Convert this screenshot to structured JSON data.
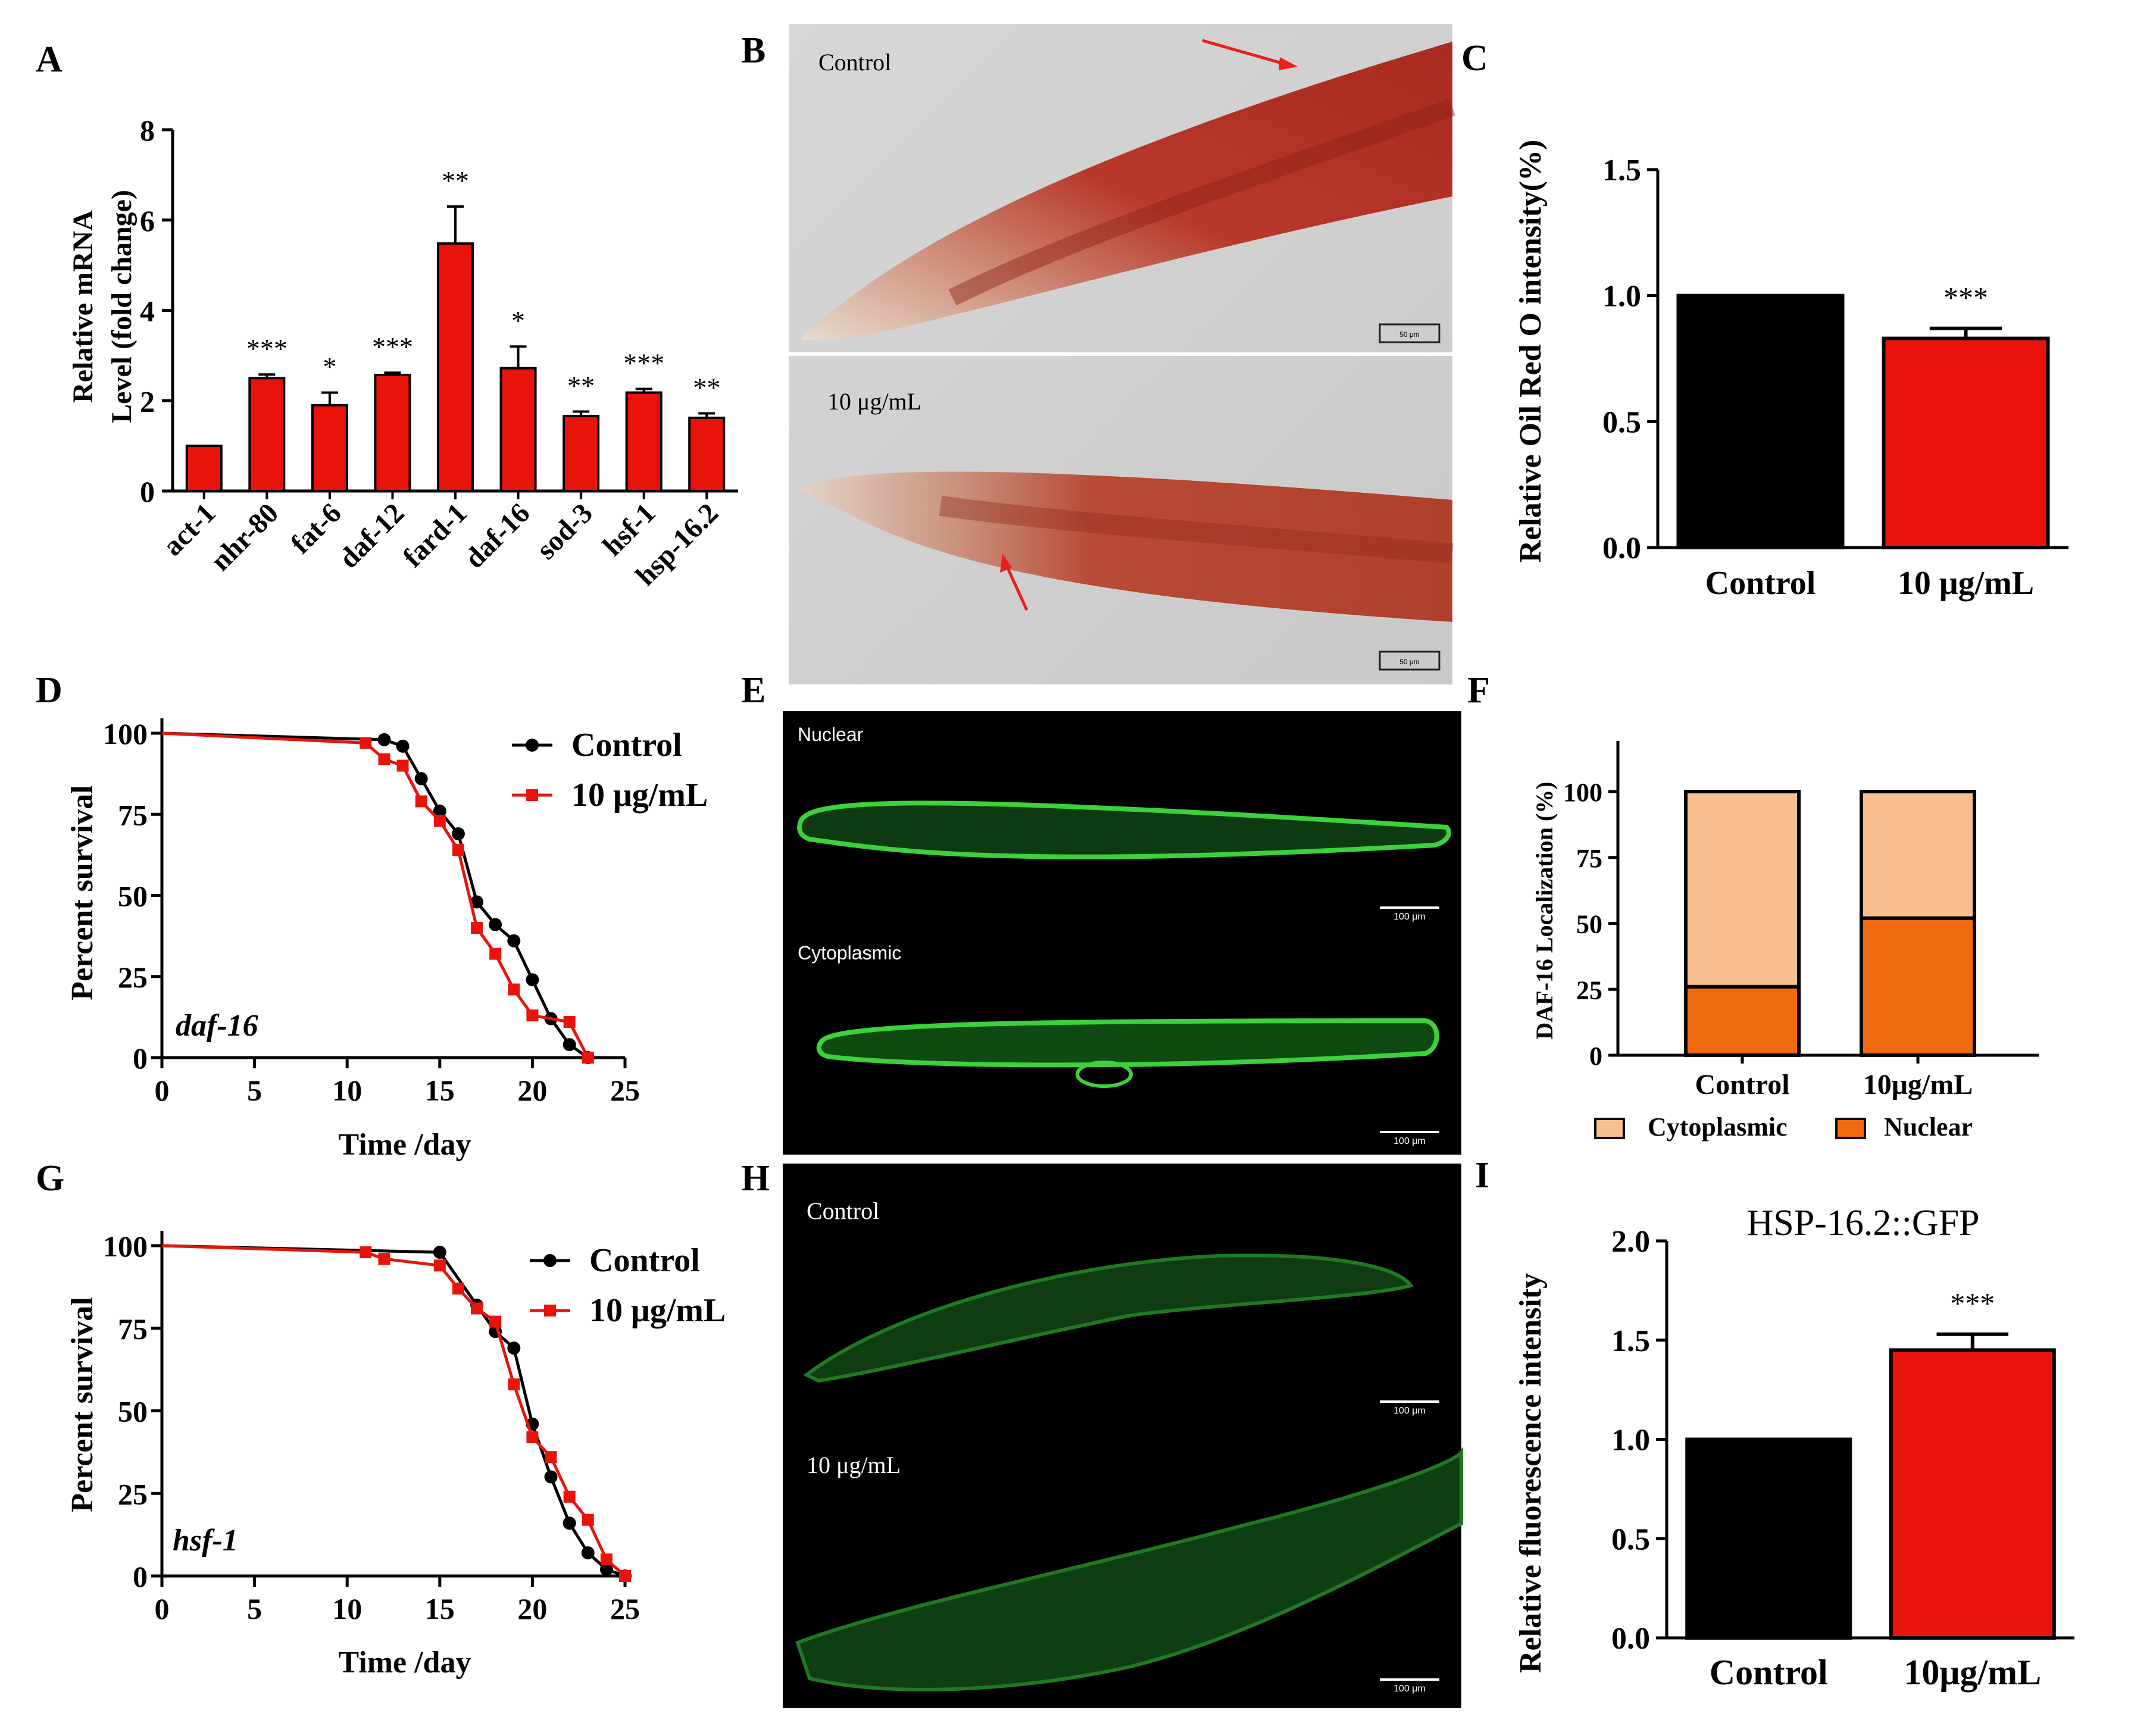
{
  "colors": {
    "red": "#e8140c",
    "black": "#000000",
    "cyto": "#f8c08e",
    "nuclear": "#f06a10",
    "gfp": "#3bd23b",
    "orc": "#b8382a"
  },
  "panelA": {
    "letter": "A",
    "chart_data": {
      "type": "bar",
      "categories": [
        "act-1",
        "nhr-80",
        "fat-6",
        "daf-12",
        "fard-1",
        "daf-16",
        "sod-3",
        "hsf-1",
        "hsp-16.2"
      ],
      "values": [
        1.0,
        2.5,
        1.9,
        2.57,
        5.48,
        2.72,
        1.66,
        2.18,
        1.62
      ],
      "errors": [
        0.0,
        0.08,
        0.28,
        0.05,
        0.82,
        0.48,
        0.1,
        0.08,
        0.1
      ],
      "significance": [
        "",
        "***",
        "*",
        "***",
        "**",
        "*",
        "**",
        "***",
        "**"
      ],
      "ylabel_line1": "Relative mRNA",
      "ylabel_line2": "Level (fold change)",
      "ylim": [
        0,
        8
      ],
      "yticks": [
        "0",
        "2",
        "4",
        "6",
        "8"
      ]
    }
  },
  "panelB": {
    "letter": "B",
    "top_label": "Control",
    "bottom_label": "10 μg/mL",
    "scale_bar": "50 μm"
  },
  "panelC": {
    "letter": "C",
    "chart_data": {
      "type": "bar",
      "categories": [
        "Control",
        "10 μg/mL"
      ],
      "values": [
        1.0,
        0.83
      ],
      "errors": [
        0.0,
        0.04
      ],
      "significance": [
        "",
        "***"
      ],
      "ylabel": "Relative Oil Red O intensity(%)",
      "ylim": [
        0,
        1.5
      ],
      "yticks": [
        "0.0",
        "0.5",
        "1.0",
        "1.5"
      ]
    }
  },
  "panelD": {
    "letter": "D",
    "chart_data": {
      "type": "line",
      "title_italic": "daf-16",
      "xlabel": "Time /day",
      "ylabel": "Percent survival",
      "xlim": [
        0,
        25
      ],
      "ylim": [
        0,
        100
      ],
      "xticks": [
        "0",
        "5",
        "10",
        "15",
        "20",
        "25"
      ],
      "yticks": [
        "0",
        "25",
        "50",
        "75",
        "100"
      ],
      "series": [
        {
          "name": "Control",
          "x": [
            0,
            12,
            13,
            14,
            15,
            16,
            17,
            18,
            19,
            20,
            21,
            22,
            23
          ],
          "y": [
            100,
            98,
            96,
            86,
            76,
            69,
            48,
            41,
            36,
            24,
            12,
            4,
            0
          ]
        },
        {
          "name": "10 μg/mL",
          "x": [
            0,
            11,
            12,
            13,
            14,
            15,
            16,
            17,
            18,
            19,
            20,
            22,
            23
          ],
          "y": [
            100,
            97,
            92,
            90,
            79,
            73,
            64,
            40,
            32,
            21,
            13,
            11,
            0
          ]
        }
      ]
    }
  },
  "panelE": {
    "letter": "E",
    "top_label": "Nuclear",
    "bottom_label": "Cytoplasmic",
    "scale_bar": "100 μm"
  },
  "panelF": {
    "letter": "F",
    "chart_data": {
      "type": "bar",
      "stacked": true,
      "categories": [
        "Control",
        "10μg/mL"
      ],
      "series": [
        {
          "name": "Nuclear",
          "values": [
            26,
            52
          ]
        },
        {
          "name": "Cytoplasmic",
          "values": [
            74,
            48
          ]
        }
      ],
      "ylabel": "DAF-16 Localization (%)",
      "ylim": [
        0,
        100
      ],
      "yticks": [
        "0",
        "25",
        "50",
        "75",
        "100"
      ],
      "legend": [
        "Cytoplasmic",
        "Nuclear"
      ]
    }
  },
  "panelG": {
    "letter": "G",
    "chart_data": {
      "type": "line",
      "title_italic": "hsf-1",
      "xlabel": "Time /day",
      "ylabel": "Percent survival",
      "xlim": [
        0,
        25
      ],
      "ylim": [
        0,
        100
      ],
      "xticks": [
        "0",
        "5",
        "10",
        "15",
        "20",
        "25"
      ],
      "yticks": [
        "0",
        "25",
        "50",
        "75",
        "100"
      ],
      "series": [
        {
          "name": "Control",
          "x": [
            0,
            15,
            17,
            18,
            19,
            20,
            21,
            22,
            23,
            24,
            25
          ],
          "y": [
            100,
            98,
            82,
            74,
            69,
            46,
            30,
            16,
            7,
            2,
            0
          ]
        },
        {
          "name": "10 μg/mL",
          "x": [
            0,
            11,
            12,
            15,
            16,
            17,
            18,
            19,
            20,
            21,
            22,
            23,
            24,
            25
          ],
          "y": [
            100,
            98,
            96,
            94,
            87,
            81,
            77,
            58,
            42,
            36,
            24,
            17,
            5,
            0
          ]
        }
      ]
    }
  },
  "panelH": {
    "letter": "H",
    "top_label": "Control",
    "bottom_label": "10 μg/mL",
    "scale_bar": "100 μm"
  },
  "panelI": {
    "letter": "I",
    "chart_data": {
      "type": "bar",
      "title": "HSP-16.2::GFP",
      "categories": [
        "Control",
        "10μg/mL"
      ],
      "values": [
        1.0,
        1.45
      ],
      "errors": [
        0.0,
        0.08
      ],
      "significance": [
        "",
        "***"
      ],
      "ylabel": "Relative fluorescence intensity",
      "ylim": [
        0,
        2.0
      ],
      "yticks": [
        "0.0",
        "0.5",
        "1.0",
        "1.5",
        "2.0"
      ]
    }
  }
}
